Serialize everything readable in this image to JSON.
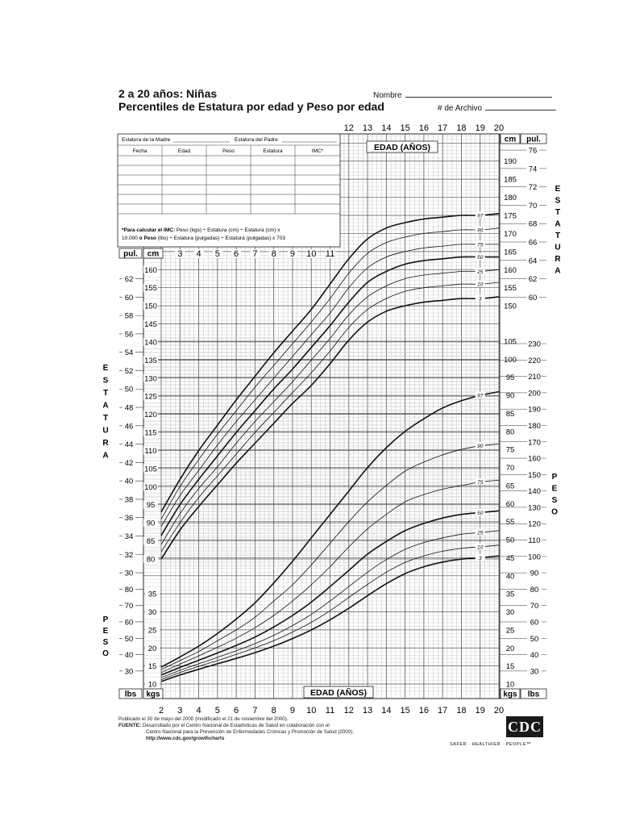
{
  "header": {
    "title_line1": "2 a 20 años: Niñas",
    "title_line2": "Percentiles de Estatura por edad y Peso por edad",
    "name_label": "Nombre",
    "record_label": "# de Archivo"
  },
  "record_table": {
    "mother_height_label": "Estatura de la Madre",
    "father_height_label": "Estatura del Padre",
    "columns": [
      "Fecha",
      "Edad",
      "Peso",
      "Estatura",
      "IMC*"
    ],
    "note_bold": "*Para calcular el IMC:",
    "note_line1": " Peso (kgs) ÷ Estatura (cm) ÷ Estatura (cm) x",
    "note_line2_a": "10.000 ",
    "note_line2_b": "o Peso",
    "note_line2_c": " (lbs) ÷ Estatura (pulgadas) ÷ Estatura (pulgadas) x 703"
  },
  "axes": {
    "age_label_top": "EDAD (AÑOS)",
    "age_label_bottom": "EDAD (AÑOS)",
    "height_label_vertical": "ESTATURA",
    "weight_label_vertical": "PESO",
    "cm_label": "cm",
    "in_label": "pul.",
    "kg_label": "kgs",
    "lb_label": "lbs"
  },
  "footer": {
    "line1": "Publicado el 30 de mayo del 2000 (modificado el 21 de noviembre del 2000).",
    "line2_label": "FUENTE:",
    "line2": " Desarrollado por el Centro Nacional de Estadísticas de Salud en colaboración con el",
    "line3": "Centro Nacional para la Prevención de Enfermedades Crónicas y Promoción de Salud (2000).",
    "url": "http://www.cdc.gov/growthcharts",
    "logo_text": "CDC",
    "tagline": "SAFER · HEALTHIER · PEOPLE™"
  },
  "chart_data": {
    "type": "line",
    "title": "Percentiles de Estatura por edad y Peso por edad",
    "x": [
      2,
      3,
      4,
      5,
      6,
      7,
      8,
      9,
      10,
      11,
      12,
      13,
      14,
      15,
      16,
      17,
      18,
      19,
      20
    ],
    "x_ticks_bottom": [
      2,
      3,
      4,
      5,
      6,
      7,
      8,
      9,
      10,
      11,
      12,
      13,
      14,
      15,
      16,
      17,
      18,
      19,
      20
    ],
    "x_ticks_top": [
      12,
      13,
      14,
      15,
      16,
      17,
      18,
      19,
      20
    ],
    "x_ticks_middle": [
      3,
      4,
      5,
      6,
      7,
      8,
      9,
      10,
      11
    ],
    "xlabel": "EDAD (AÑOS)",
    "stature": {
      "ylabel": "ESTATURA",
      "unit": "cm",
      "ylim": [
        77,
        200
      ],
      "left_cm_ticks": [
        80,
        85,
        90,
        95,
        100,
        105,
        110,
        115,
        120,
        125,
        130,
        135,
        140,
        145,
        150,
        155,
        160
      ],
      "left_in_ticks": [
        30,
        32,
        34,
        36,
        38,
        40,
        42,
        44,
        46,
        48,
        50,
        52,
        54,
        56,
        58,
        60,
        62
      ],
      "right_cm_ticks": [
        150,
        155,
        160,
        165,
        170,
        175,
        180,
        185,
        190
      ],
      "right_in_ticks": [
        60,
        62,
        64,
        66,
        68,
        70,
        72,
        74,
        76
      ],
      "series": [
        {
          "name": "97",
          "values": [
            93,
            102,
            110,
            117,
            124,
            130.5,
            137,
            143,
            149,
            156,
            163,
            168.5,
            171.5,
            173,
            174,
            174.5,
            175,
            175,
            175.5
          ]
        },
        {
          "name": "90",
          "values": [
            91,
            100,
            107.5,
            114.5,
            121,
            127.5,
            133.5,
            139.5,
            145.5,
            152,
            159,
            164.5,
            167.5,
            169,
            170,
            170.5,
            171,
            171,
            171.5
          ]
        },
        {
          "name": "75",
          "values": [
            89,
            97.5,
            104.5,
            111.5,
            118,
            124,
            130,
            136,
            142,
            148,
            155,
            160.5,
            163.5,
            165,
            166,
            166.5,
            167,
            167,
            167
          ]
        },
        {
          "name": "50",
          "values": [
            86.5,
            95,
            102,
            108.5,
            115,
            121,
            127,
            132.5,
            138.5,
            144.5,
            151,
            156.5,
            159.5,
            161.5,
            162.5,
            163,
            163.5,
            163.5,
            163.5
          ]
        },
        {
          "name": "25",
          "values": [
            84,
            92.5,
            99.5,
            105.5,
            112,
            118,
            123.5,
            129,
            135,
            141,
            147.5,
            152.5,
            155.5,
            157.5,
            158.5,
            159,
            159.5,
            159.5,
            160
          ]
        },
        {
          "name": "10",
          "values": [
            82,
            90,
            97,
            103,
            109,
            115,
            120.5,
            126,
            131.5,
            137.5,
            144,
            149,
            152,
            154,
            155,
            155.5,
            156,
            156,
            156.5
          ]
        },
        {
          "name": "3",
          "values": [
            80,
            88,
            94.5,
            100.5,
            106.5,
            112,
            117.5,
            123,
            128,
            134,
            140.5,
            145.5,
            148.5,
            150,
            151,
            151.5,
            152,
            152,
            152.5
          ]
        }
      ]
    },
    "weight": {
      "ylabel": "PESO",
      "unit": "kgs",
      "ylim": [
        8,
        106
      ],
      "left_kg_ticks": [
        10,
        15,
        20,
        25,
        30,
        35
      ],
      "left_lb_ticks": [
        30,
        40,
        50,
        60,
        70,
        80
      ],
      "right_kg_ticks": [
        10,
        15,
        20,
        25,
        30,
        35,
        40,
        45,
        50,
        55,
        60,
        65,
        70,
        75,
        80,
        85,
        90,
        95,
        100,
        105
      ],
      "right_lb_ticks": [
        30,
        40,
        50,
        60,
        70,
        80,
        90,
        100,
        110,
        120,
        130,
        140,
        150,
        160,
        170,
        180,
        190,
        200,
        210,
        220,
        230
      ],
      "series": [
        {
          "name": "97",
          "values": [
            14.7,
            17.5,
            20.5,
            24,
            28,
            32.5,
            38,
            44,
            50.5,
            57,
            63.5,
            70,
            75.5,
            80,
            83.5,
            86.5,
            88.5,
            90,
            91
          ]
        },
        {
          "name": "90",
          "values": [
            14,
            16.5,
            19,
            22,
            25,
            28.5,
            33,
            37.5,
            43,
            49,
            55,
            60.5,
            65,
            69,
            71.5,
            73.5,
            75,
            76,
            76.5
          ]
        },
        {
          "name": "75",
          "values": [
            13.2,
            15.5,
            17.8,
            20.2,
            22.7,
            25.6,
            29,
            33,
            37.5,
            42.5,
            48,
            53,
            57,
            60.5,
            62.5,
            64,
            65,
            66,
            66.5
          ]
        },
        {
          "name": "50",
          "values": [
            12.5,
            14.6,
            16.6,
            18.6,
            20.7,
            23,
            25.8,
            29,
            32.7,
            37,
            41.5,
            46,
            49.5,
            52.5,
            54.5,
            56,
            57,
            57.5,
            58
          ]
        },
        {
          "name": "25",
          "values": [
            11.8,
            13.8,
            15.6,
            17.4,
            19.2,
            21.2,
            23.5,
            26.2,
            29.3,
            33,
            37,
            41,
            44.5,
            47.3,
            49.2,
            50.5,
            51.5,
            52,
            52.5
          ]
        },
        {
          "name": "10",
          "values": [
            11.2,
            13.2,
            14.9,
            16.5,
            18.2,
            20,
            22,
            24.4,
            27.1,
            30.3,
            34,
            37.6,
            41,
            43.7,
            45.5,
            46.8,
            47.6,
            48,
            48.5
          ]
        },
        {
          "name": "3",
          "values": [
            10.7,
            12.5,
            14.1,
            15.6,
            17.1,
            18.7,
            20.5,
            22.6,
            25,
            27.8,
            31,
            34.5,
            37.8,
            40.6,
            42.5,
            43.8,
            44.6,
            45,
            45.5
          ]
        }
      ]
    }
  }
}
